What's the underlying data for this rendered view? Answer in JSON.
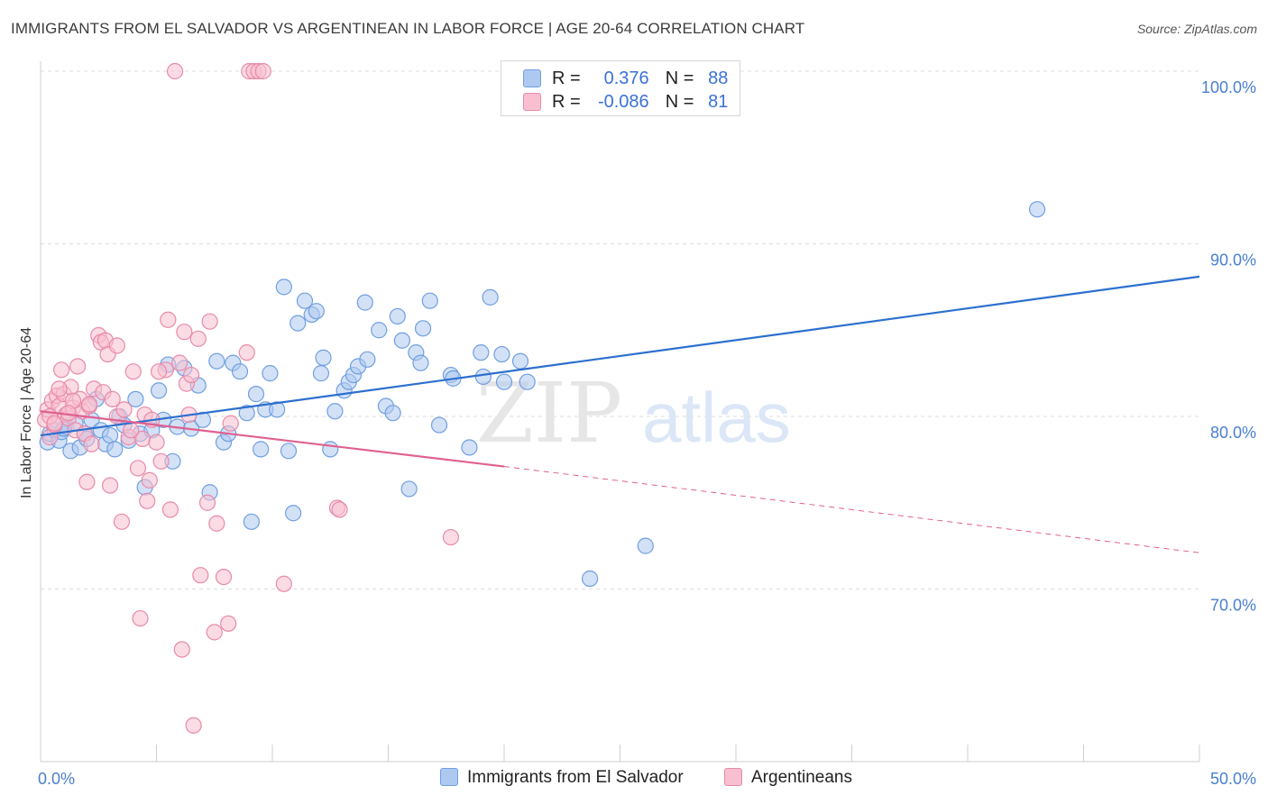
{
  "header": {
    "title": "IMMIGRANTS FROM EL SALVADOR VS ARGENTINEAN IN LABOR FORCE | AGE 20-64 CORRELATION CHART",
    "source": "Source: ZipAtlas.com"
  },
  "legend_stats": {
    "r_label": "R =",
    "n_label": "N =",
    "rows": [
      {
        "r": "0.376",
        "n": "88"
      },
      {
        "r": "-0.086",
        "n": "81"
      }
    ]
  },
  "watermark": {
    "zip": "ZIP",
    "atlas": "atlas"
  },
  "colors": {
    "blue_fill": "#aec9f0",
    "blue_stroke": "#6f9fe0",
    "blue_line": "#2c6fcf",
    "pink_fill": "#f7bfd0",
    "pink_stroke": "#e88aa8",
    "pink_line": "#e0608f",
    "grid": "#dcdcdc",
    "tick_text": "#4a7fd0"
  },
  "chart_data": {
    "type": "scatter",
    "title": "IMMIGRANTS FROM EL SALVADOR VS ARGENTINEAN IN LABOR FORCE | AGE 20-64 CORRELATION CHART",
    "xlabel": "",
    "ylabel": "In Labor Force | Age 20-64",
    "xlim": [
      0,
      50
    ],
    "ylim": [
      60,
      100.5
    ],
    "x_tick_labels": [
      "0.0%",
      "50.0%"
    ],
    "y_ticks": [
      70,
      80,
      90,
      100
    ],
    "y_tick_labels": [
      "70.0%",
      "80.0%",
      "90.0%",
      "100.0%"
    ],
    "grid": true,
    "legend_position": "top-center",
    "series": [
      {
        "name": "Immigrants from El Salvador",
        "color": "#6f9fe0",
        "r": 0.376,
        "n": 88,
        "trend": {
          "x": [
            0,
            50
          ],
          "y": [
            78.9,
            88.1
          ],
          "style": "solid"
        },
        "points": [
          [
            0.3,
            78.5
          ],
          [
            0.4,
            79.0
          ],
          [
            0.6,
            79.2
          ],
          [
            0.8,
            78.6
          ],
          [
            0.9,
            79.1
          ],
          [
            1.1,
            79.4
          ],
          [
            1.3,
            78.0
          ],
          [
            1.5,
            79.6
          ],
          [
            1.7,
            78.2
          ],
          [
            1.9,
            79.0
          ],
          [
            2.0,
            78.7
          ],
          [
            2.2,
            79.8
          ],
          [
            2.4,
            81.0
          ],
          [
            2.6,
            79.2
          ],
          [
            2.8,
            78.4
          ],
          [
            3.0,
            78.9
          ],
          [
            3.2,
            78.1
          ],
          [
            3.4,
            80.0
          ],
          [
            3.6,
            79.5
          ],
          [
            3.8,
            78.6
          ],
          [
            4.1,
            81.0
          ],
          [
            4.3,
            79.0
          ],
          [
            4.5,
            75.9
          ],
          [
            4.8,
            79.2
          ],
          [
            5.1,
            81.5
          ],
          [
            5.3,
            79.8
          ],
          [
            5.5,
            83.0
          ],
          [
            5.7,
            77.4
          ],
          [
            5.9,
            79.4
          ],
          [
            6.2,
            82.8
          ],
          [
            6.5,
            79.3
          ],
          [
            6.8,
            81.8
          ],
          [
            7.0,
            79.8
          ],
          [
            7.3,
            75.6
          ],
          [
            7.6,
            83.2
          ],
          [
            7.9,
            78.5
          ],
          [
            8.1,
            79.0
          ],
          [
            8.3,
            83.1
          ],
          [
            8.6,
            82.6
          ],
          [
            8.9,
            80.2
          ],
          [
            9.1,
            73.9
          ],
          [
            9.3,
            81.3
          ],
          [
            9.5,
            78.1
          ],
          [
            9.7,
            80.4
          ],
          [
            9.9,
            82.5
          ],
          [
            10.2,
            80.4
          ],
          [
            10.5,
            87.5
          ],
          [
            10.7,
            78.0
          ],
          [
            10.9,
            74.4
          ],
          [
            11.1,
            85.4
          ],
          [
            11.4,
            86.7
          ],
          [
            11.7,
            85.9
          ],
          [
            11.9,
            86.1
          ],
          [
            12.1,
            82.5
          ],
          [
            12.2,
            83.4
          ],
          [
            12.5,
            78.1
          ],
          [
            12.7,
            80.3
          ],
          [
            13.1,
            81.5
          ],
          [
            13.3,
            82.0
          ],
          [
            13.5,
            82.4
          ],
          [
            13.7,
            82.9
          ],
          [
            14.0,
            86.6
          ],
          [
            14.1,
            83.3
          ],
          [
            14.6,
            85.0
          ],
          [
            14.9,
            80.6
          ],
          [
            15.2,
            80.2
          ],
          [
            15.4,
            85.8
          ],
          [
            15.6,
            84.4
          ],
          [
            15.9,
            75.8
          ],
          [
            16.2,
            83.7
          ],
          [
            16.4,
            83.1
          ],
          [
            16.5,
            85.1
          ],
          [
            16.8,
            86.7
          ],
          [
            17.2,
            79.5
          ],
          [
            17.7,
            82.4
          ],
          [
            17.8,
            82.2
          ],
          [
            18.5,
            78.2
          ],
          [
            19.0,
            83.7
          ],
          [
            19.1,
            82.3
          ],
          [
            19.4,
            86.9
          ],
          [
            19.9,
            83.6
          ],
          [
            20.0,
            82.0
          ],
          [
            20.7,
            83.2
          ],
          [
            21.0,
            82.0
          ],
          [
            23.7,
            70.6
          ],
          [
            26.1,
            72.5
          ],
          [
            43.0,
            92.0
          ],
          [
            1.0,
            79.3
          ]
        ]
      },
      {
        "name": "Argentineans",
        "color": "#e88aa8",
        "r": -0.086,
        "n": 81,
        "trend": {
          "x": [
            0,
            20
          ],
          "y": [
            80.3,
            77.1
          ],
          "style": "solid"
        },
        "trend_extension": {
          "x": [
            20,
            50
          ],
          "y": [
            77.1,
            72.1
          ],
          "style": "dashed"
        },
        "points": [
          [
            0.2,
            79.8
          ],
          [
            0.3,
            80.4
          ],
          [
            0.4,
            78.8
          ],
          [
            0.5,
            80.9
          ],
          [
            0.6,
            79.5
          ],
          [
            0.7,
            81.2
          ],
          [
            0.8,
            80.6
          ],
          [
            0.9,
            82.7
          ],
          [
            1.0,
            81.3
          ],
          [
            1.1,
            80.1
          ],
          [
            1.2,
            79.9
          ],
          [
            1.3,
            81.7
          ],
          [
            1.4,
            80.5
          ],
          [
            1.5,
            79.2
          ],
          [
            1.6,
            82.9
          ],
          [
            1.7,
            81.0
          ],
          [
            1.8,
            80.3
          ],
          [
            1.9,
            79.0
          ],
          [
            2.0,
            76.2
          ],
          [
            2.1,
            80.6
          ],
          [
            2.2,
            78.4
          ],
          [
            2.3,
            81.6
          ],
          [
            2.5,
            84.7
          ],
          [
            2.6,
            84.3
          ],
          [
            2.7,
            81.4
          ],
          [
            2.8,
            84.4
          ],
          [
            2.9,
            83.6
          ],
          [
            3.0,
            76.0
          ],
          [
            3.1,
            81.0
          ],
          [
            3.3,
            80.0
          ],
          [
            3.5,
            73.9
          ],
          [
            3.6,
            80.4
          ],
          [
            3.8,
            78.8
          ],
          [
            4.0,
            82.6
          ],
          [
            4.2,
            77.0
          ],
          [
            4.3,
            68.3
          ],
          [
            4.4,
            78.7
          ],
          [
            4.5,
            80.1
          ],
          [
            4.6,
            75.1
          ],
          [
            4.7,
            76.3
          ],
          [
            4.8,
            79.8
          ],
          [
            5.0,
            78.5
          ],
          [
            5.2,
            77.4
          ],
          [
            5.4,
            82.7
          ],
          [
            5.5,
            85.6
          ],
          [
            5.6,
            74.6
          ],
          [
            5.8,
            100.0
          ],
          [
            6.0,
            83.1
          ],
          [
            6.1,
            66.5
          ],
          [
            6.2,
            84.9
          ],
          [
            6.3,
            81.9
          ],
          [
            6.4,
            80.1
          ],
          [
            6.5,
            82.4
          ],
          [
            6.6,
            62.1
          ],
          [
            6.8,
            84.5
          ],
          [
            6.9,
            70.8
          ],
          [
            7.2,
            75.0
          ],
          [
            7.3,
            85.5
          ],
          [
            7.5,
            67.5
          ],
          [
            7.6,
            73.8
          ],
          [
            7.9,
            70.7
          ],
          [
            8.1,
            68.0
          ],
          [
            8.2,
            79.6
          ],
          [
            8.9,
            83.7
          ],
          [
            9.0,
            100.0
          ],
          [
            9.2,
            100.0
          ],
          [
            9.4,
            100.0
          ],
          [
            9.6,
            100.0
          ],
          [
            10.5,
            70.3
          ],
          [
            12.8,
            74.7
          ],
          [
            12.9,
            74.6
          ],
          [
            17.7,
            73.0
          ],
          [
            0.4,
            80.0
          ],
          [
            0.8,
            81.6
          ],
          [
            1.4,
            80.9
          ],
          [
            2.1,
            80.7
          ],
          [
            3.3,
            84.1
          ],
          [
            3.9,
            79.2
          ],
          [
            5.1,
            82.6
          ],
          [
            0.6,
            79.6
          ],
          [
            1.2,
            80.2
          ]
        ]
      }
    ]
  },
  "bottom_legend": [
    {
      "label": "Immigrants from El Salvador"
    },
    {
      "label": "Argentineans"
    }
  ]
}
